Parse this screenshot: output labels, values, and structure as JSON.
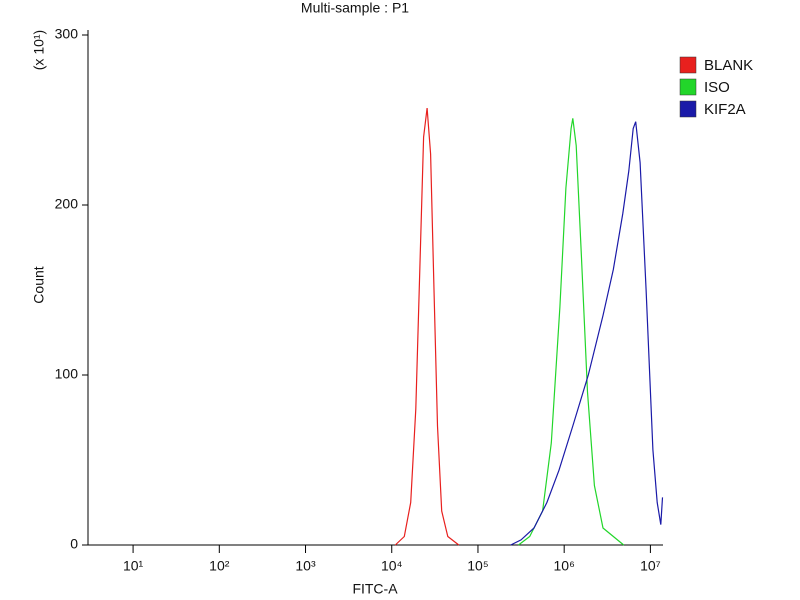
{
  "chart_data": {
    "type": "line",
    "title": "Multi-sample : P1",
    "x_label": "FITC-A",
    "y_label": "Count",
    "y_multiplier": "(x 10¹)",
    "x_scale": "log",
    "xlim": [
      3,
      14000000
    ],
    "xticks": [
      {
        "value": 10,
        "label": "10¹"
      },
      {
        "value": 100,
        "label": "10²"
      },
      {
        "value": 1000,
        "label": "10³"
      },
      {
        "value": 10000,
        "label": "10⁴"
      },
      {
        "value": 100000,
        "label": "10⁵"
      },
      {
        "value": 1000000,
        "label": "10⁶"
      },
      {
        "value": 10000000,
        "label": "10⁷"
      }
    ],
    "ylim": [
      0,
      300
    ],
    "yticks": [
      0,
      100,
      200,
      300
    ],
    "legend": "right",
    "series": [
      {
        "name": "BLANK",
        "color": "#e8201e",
        "x": [
          11000,
          14000,
          16600,
          19000,
          21400,
          23400,
          25700,
          28200,
          30900,
          33900,
          38000,
          44700,
          60000
        ],
        "values": [
          0,
          5,
          25,
          80,
          170,
          240,
          257,
          230,
          150,
          70,
          20,
          5,
          0
        ]
      },
      {
        "name": "ISO",
        "color": "#22d62a",
        "x": [
          295000,
          398000,
          562000,
          708000,
          891000,
          1047000,
          1202000,
          1259000,
          1380000,
          1585000,
          1862000,
          2239000,
          2818000,
          4898000
        ],
        "values": [
          0,
          5,
          20,
          60,
          140,
          210,
          245,
          251,
          235,
          170,
          90,
          35,
          10,
          0
        ]
      },
      {
        "name": "KIF2A",
        "color": "#1a1aa8",
        "x": [
          240000,
          316000,
          447000,
          631000,
          871000,
          1259000,
          1905000,
          2818000,
          3715000,
          4786000,
          5623000,
          6310000,
          6761000,
          7586000,
          8913000,
          10700000,
          12000000,
          13200000,
          13800000
        ],
        "values": [
          0,
          3,
          10,
          25,
          44,
          70,
          100,
          135,
          162,
          195,
          220,
          245,
          249,
          225,
          150,
          56,
          25,
          12,
          28
        ]
      }
    ]
  }
}
